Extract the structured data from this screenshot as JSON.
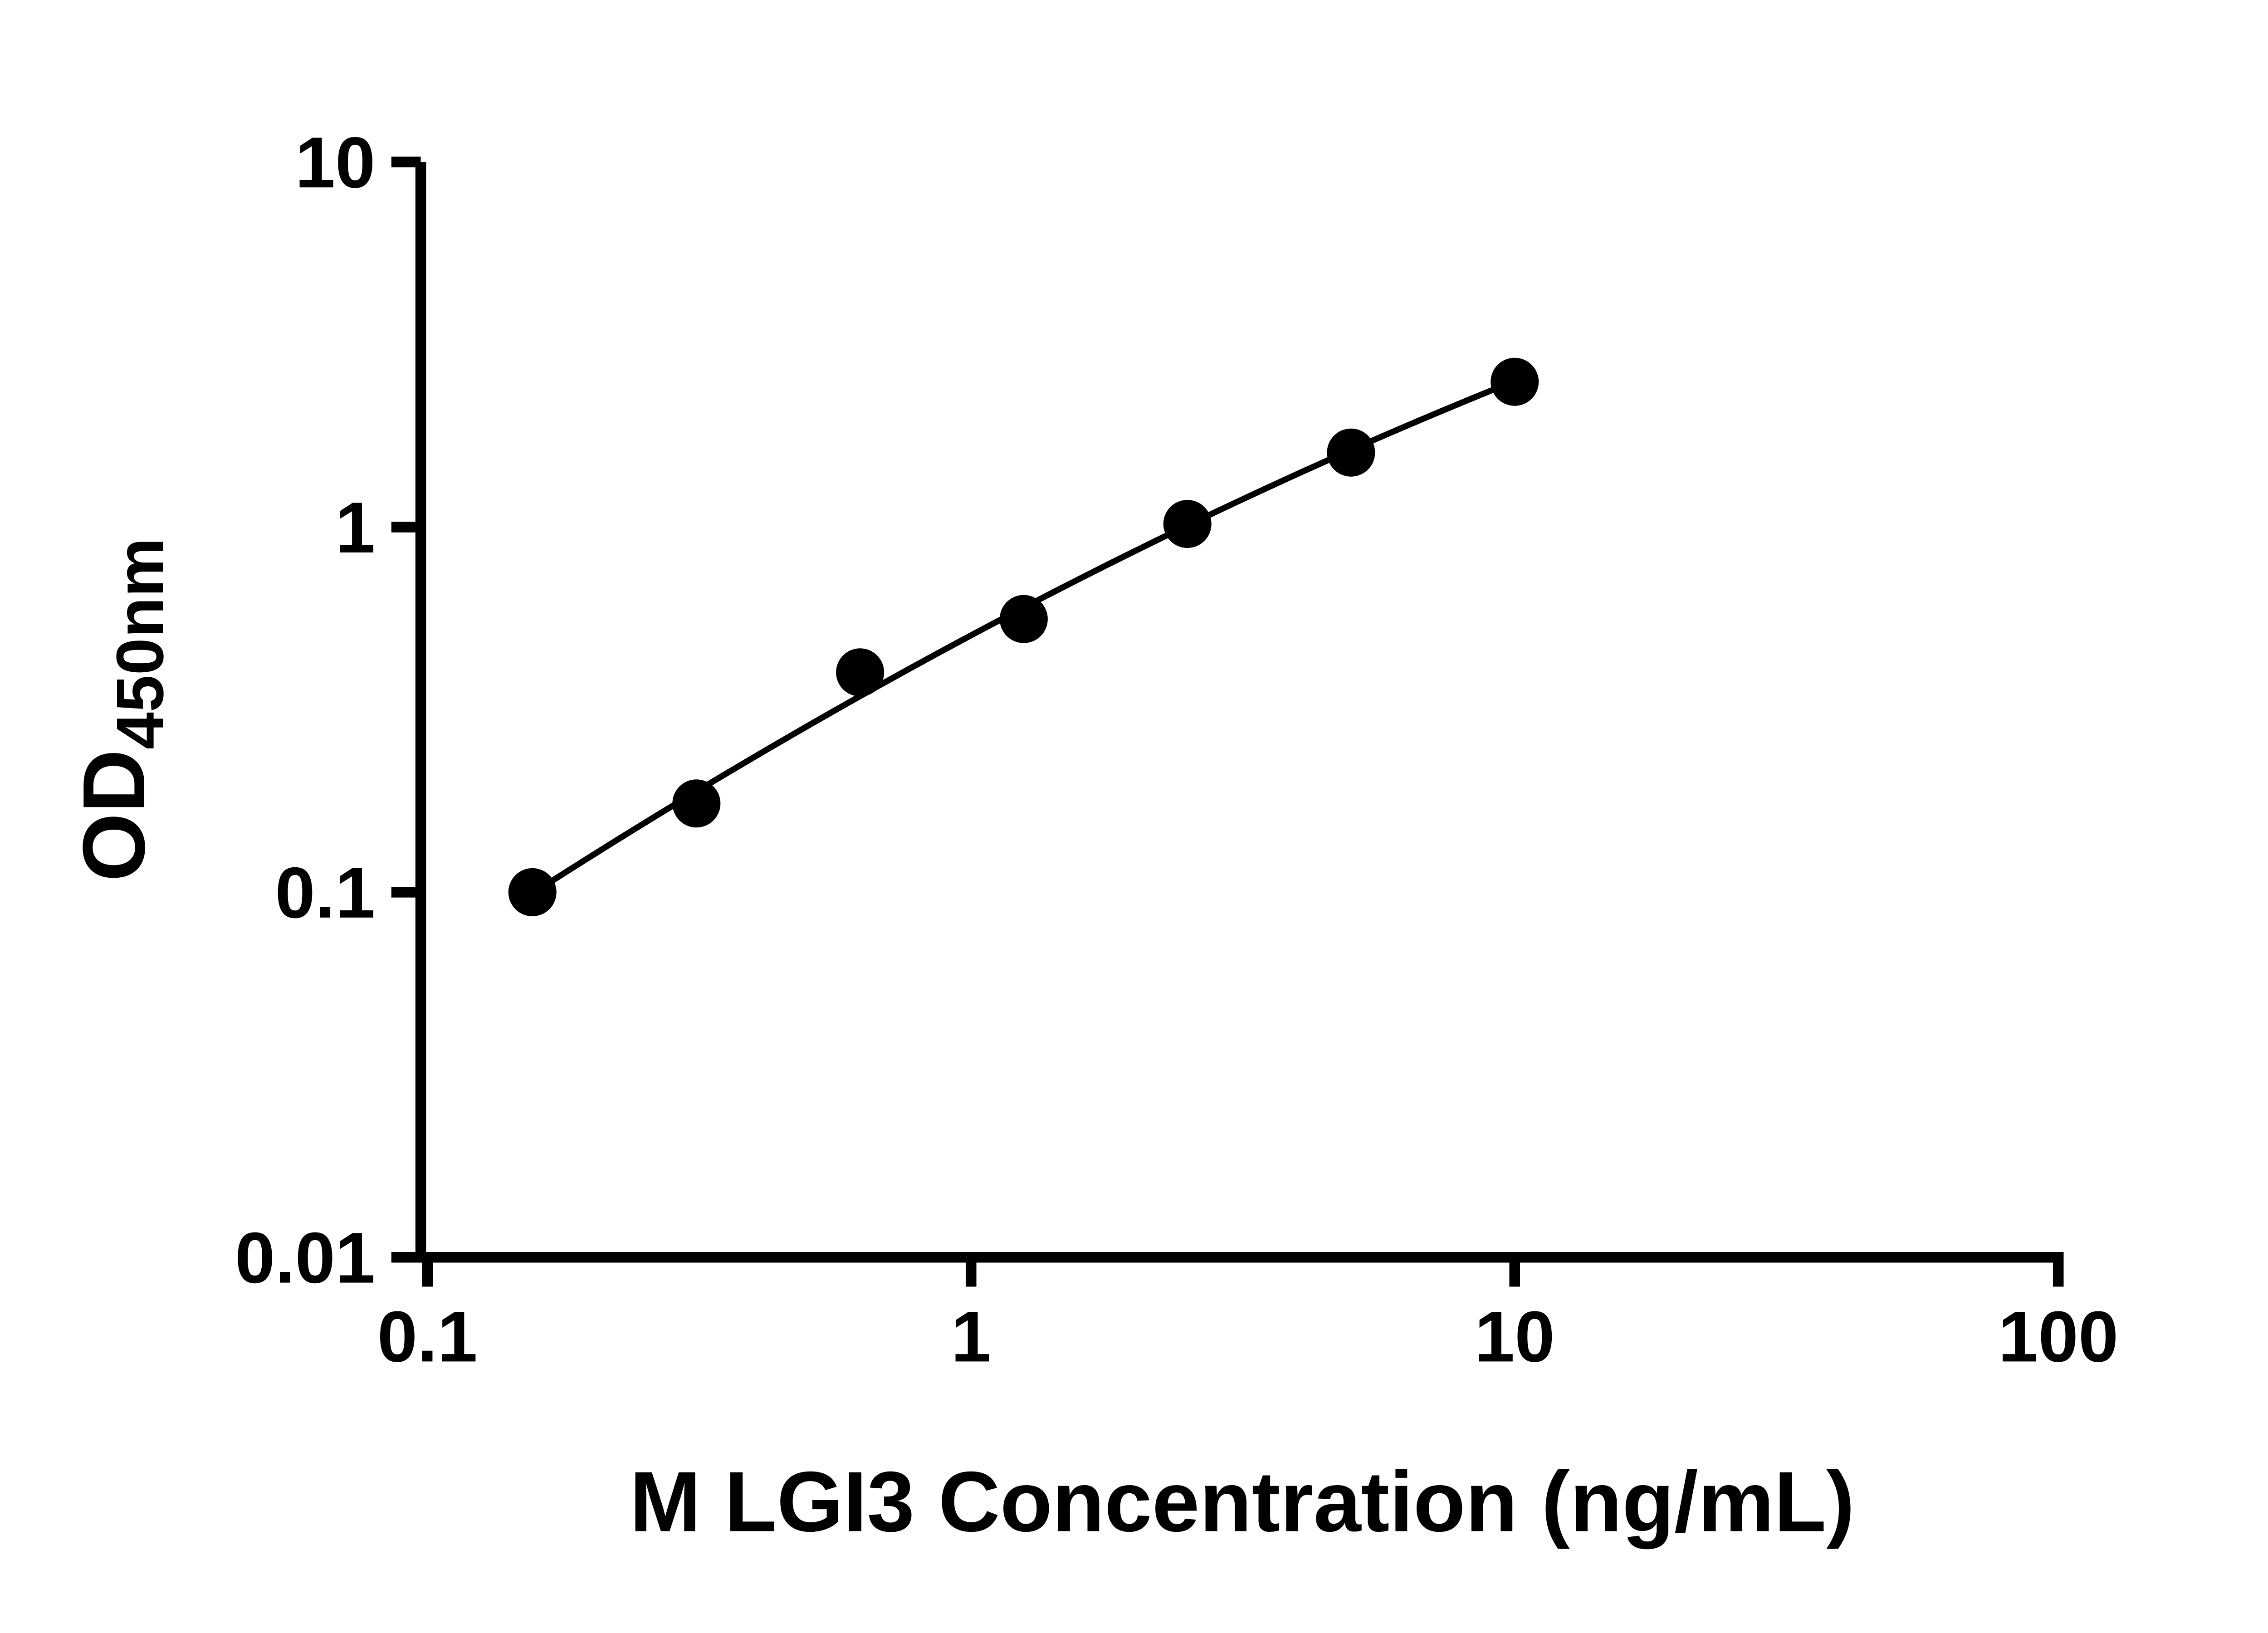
{
  "figure": {
    "background": "#ffffff",
    "axis_color": "#000000",
    "point_color": "#000000",
    "line_color": "#000000"
  },
  "chart_data": {
    "type": "scatter",
    "title": "",
    "xlabel": "M LGI3 Concentration (ng/mL)",
    "ylabel_main": "OD",
    "ylabel_sub": "450nm",
    "x_scale": "log",
    "y_scale": "log",
    "xlim": [
      0.1,
      100
    ],
    "ylim": [
      0.01,
      10
    ],
    "x_ticks": [
      "0.1",
      "1",
      "10",
      "100"
    ],
    "y_ticks": [
      "0.01",
      "0.1",
      "1",
      "10"
    ],
    "grid": false,
    "legend": null,
    "x": [
      0.156,
      0.3125,
      0.625,
      1.25,
      2.5,
      5,
      10
    ],
    "y": [
      0.1,
      0.175,
      0.4,
      0.56,
      1.02,
      1.6,
      2.5
    ],
    "fit_line": {
      "type": "quadratic_loglog",
      "a": -0.2965,
      "b": 0.7959,
      "c": -0.0994,
      "x_start": 0.156,
      "x_end": 10
    }
  }
}
